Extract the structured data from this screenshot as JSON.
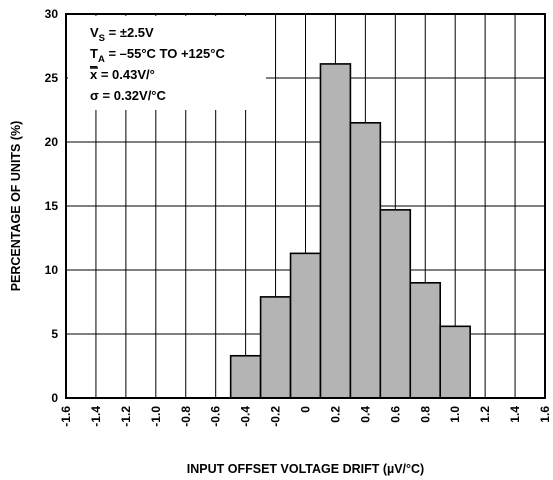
{
  "chart_data": {
    "type": "bar",
    "xlabel": "INPUT OFFSET VOLTAGE DRIFT (µV/°C)",
    "ylabel": "PERCENTAGE OF UNITS (%)",
    "xlim": [
      -1.6,
      1.6
    ],
    "ylim": [
      0,
      30
    ],
    "bin_width": 0.2,
    "x_ticks": [
      "-1.6",
      "-1.4",
      "-1.2",
      "-1.0",
      "-0.8",
      "-0.6",
      "-0.4",
      "-0.2",
      "0",
      "0.2",
      "0.4",
      "0.6",
      "0.8",
      "1.0",
      "1.2",
      "1.4",
      "1.6"
    ],
    "x_tick_values": [
      -1.6,
      -1.4,
      -1.2,
      -1.0,
      -0.8,
      -0.6,
      -0.4,
      -0.2,
      0,
      0.2,
      0.4,
      0.6,
      0.8,
      1.0,
      1.2,
      1.4,
      1.6
    ],
    "y_ticks": [
      "0",
      "5",
      "10",
      "15",
      "20",
      "25",
      "30"
    ],
    "y_tick_values": [
      0,
      5,
      10,
      15,
      20,
      25,
      30
    ],
    "bins": [
      {
        "x0": -0.5,
        "x1": -0.3,
        "value": 3.3
      },
      {
        "x0": -0.3,
        "x1": -0.1,
        "value": 7.9
      },
      {
        "x0": -0.1,
        "x1": 0.1,
        "value": 11.3
      },
      {
        "x0": 0.1,
        "x1": 0.3,
        "value": 26.1
      },
      {
        "x0": 0.3,
        "x1": 0.5,
        "value": 21.5
      },
      {
        "x0": 0.5,
        "x1": 0.7,
        "value": 14.7
      },
      {
        "x0": 0.7,
        "x1": 0.9,
        "value": 9.0
      },
      {
        "x0": 0.9,
        "x1": 1.1,
        "value": 5.6
      }
    ],
    "grid": true,
    "bar_color": "#b4b4b4",
    "annotations": [
      {
        "main": "V",
        "sub": "S",
        "rest": " = ±2.5V"
      },
      {
        "main": "T",
        "sub": "A",
        "rest": " = –55°C TO +125°C"
      },
      {
        "main": "x",
        "sub": "",
        "rest": " = 0.43V/°",
        "overline": true
      },
      {
        "main": "σ",
        "sub": "",
        "rest": " = 0.32V/°C"
      }
    ]
  }
}
